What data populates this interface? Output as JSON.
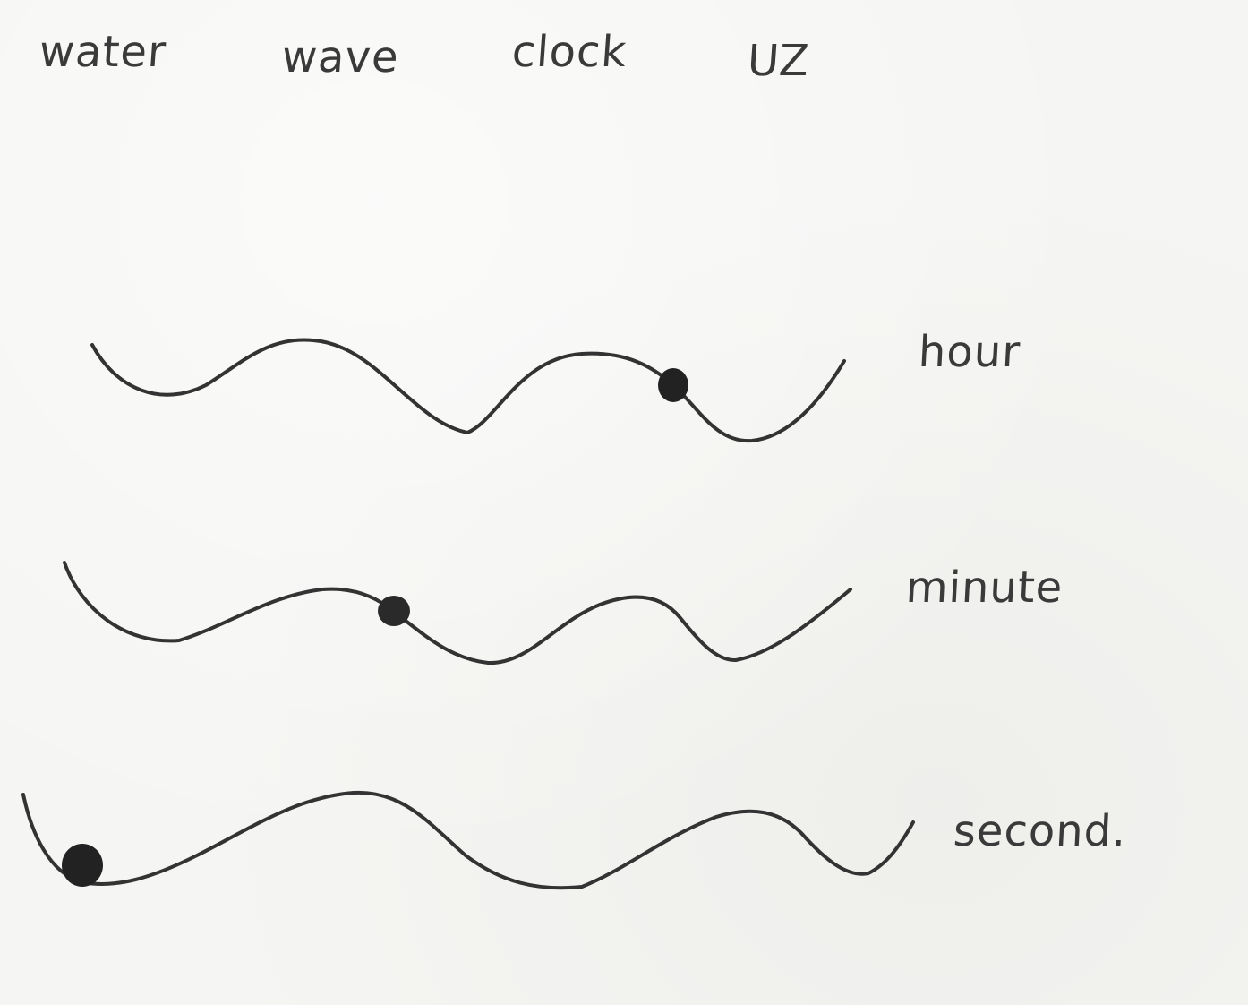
{
  "header": {
    "words": [
      "water",
      "wave",
      "clock",
      "UZ"
    ]
  },
  "waves": [
    {
      "label": "hour"
    },
    {
      "label": "minute"
    },
    {
      "label": "second."
    }
  ],
  "colors": {
    "paper": "#f5f5f3",
    "ink": "#333333",
    "dot": "#222222"
  }
}
